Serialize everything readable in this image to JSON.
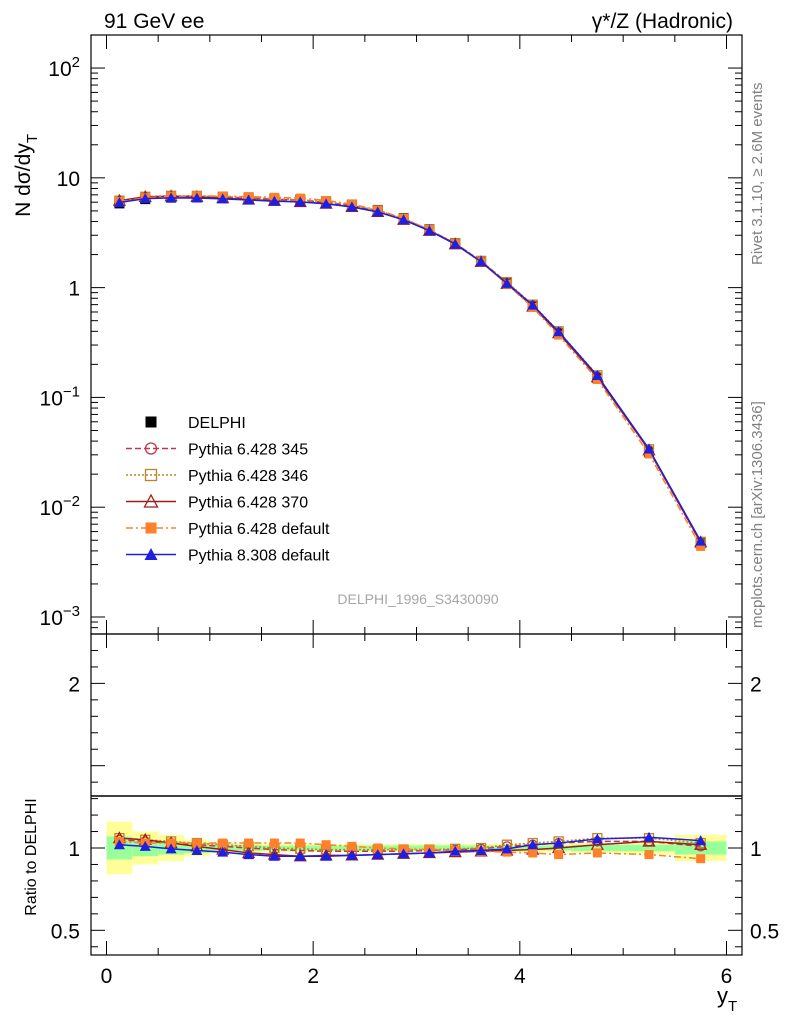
{
  "header": {
    "left": "91 GeV ee",
    "right": "γ*/Z (Hadronic)"
  },
  "side_text": {
    "top": "Rivet 3.1.10, ≥ 2.6M events",
    "bottom": "mcplots.cern.ch [arXiv:1306.3436]"
  },
  "chart_data": {
    "type": "line",
    "x": [
      0.125,
      0.375,
      0.625,
      0.875,
      1.125,
      1.375,
      1.625,
      1.875,
      2.125,
      2.375,
      2.625,
      2.875,
      3.125,
      3.375,
      3.625,
      3.875,
      4.125,
      4.375,
      4.75,
      5.25,
      5.75
    ],
    "x_bin_edges": [
      0,
      0.25,
      0.5,
      0.75,
      1,
      1.25,
      1.5,
      1.75,
      2,
      2.25,
      2.5,
      2.75,
      3,
      3.25,
      3.5,
      3.75,
      4,
      4.25,
      4.5,
      5,
      5.5,
      6
    ],
    "main": {
      "ylabel": "N dσ/dy",
      "ylabel_sub": "T",
      "y_scale": "log",
      "ylim": [
        0.0007,
        200
      ],
      "y_ticks": [
        {
          "v": 0.001,
          "base": "10",
          "exp": "−3"
        },
        {
          "v": 0.01,
          "base": "10",
          "exp": "−2"
        },
        {
          "v": 0.1,
          "base": "10",
          "exp": "−1"
        },
        {
          "v": 1,
          "base": "1",
          "exp": ""
        },
        {
          "v": 10,
          "base": "10",
          "exp": ""
        },
        {
          "v": 100,
          "base": "10",
          "exp": "2"
        }
      ]
    },
    "ratio": {
      "ylabel": "Ratio to DELPHI",
      "ylim": [
        0.35,
        2.3
      ],
      "y_ticks": [
        {
          "v": 0.5,
          "label": "0.5"
        },
        {
          "v": 1,
          "label": "1"
        },
        {
          "v": 2,
          "label": "2"
        }
      ],
      "band_inner_half": [
        0.07,
        0.05,
        0.04,
        0.03,
        0.02,
        0.02,
        0.015,
        0.015,
        0.015,
        0.015,
        0.015,
        0.015,
        0.015,
        0.015,
        0.015,
        0.015,
        0.015,
        0.015,
        0.02,
        0.02,
        0.04
      ],
      "band_outer_half": [
        0.16,
        0.1,
        0.08,
        0.05,
        0.03,
        0.03,
        0.025,
        0.025,
        0.025,
        0.025,
        0.025,
        0.025,
        0.025,
        0.025,
        0.025,
        0.025,
        0.025,
        0.025,
        0.03,
        0.04,
        0.08
      ],
      "band_inner_color": "#99ff99",
      "band_outer_color": "#ffff99"
    },
    "xlabel": "y",
    "xlabel_sub": "T",
    "xlim": [
      -0.15,
      6.15
    ],
    "x_ticks": [
      0,
      2,
      4,
      6
    ],
    "data_values": [
      5.85,
      6.4,
      6.6,
      6.65,
      6.6,
      6.55,
      6.45,
      6.35,
      6.1,
      5.7,
      5.1,
      4.3,
      3.4,
      2.55,
      1.75,
      1.1,
      0.68,
      0.385,
      0.15,
      0.0318,
      0.0047
    ],
    "series": [
      {
        "name": "DELPHI",
        "color": "#000000",
        "marker": "square-filled",
        "dash": "none",
        "ratio": [
          1,
          1,
          1,
          1,
          1,
          1,
          1,
          1,
          1,
          1,
          1,
          1,
          1,
          1,
          1,
          1,
          1,
          1,
          1,
          1,
          1
        ]
      },
      {
        "name": "Pythia 6.428 345",
        "color": "#c0394b",
        "marker": "circle-open",
        "dash": "6,3",
        "ratio": [
          1.05,
          1.04,
          1.03,
          1.02,
          1.01,
          1.0,
          0.99,
          0.985,
          0.98,
          0.98,
          0.98,
          0.98,
          0.985,
          0.99,
          0.995,
          1.01,
          1.02,
          1.03,
          1.04,
          1.04,
          1.01
        ]
      },
      {
        "name": "Pythia 6.428 346",
        "color": "#b8862b",
        "marker": "square-open",
        "dash": "2,2",
        "ratio": [
          1.06,
          1.05,
          1.04,
          1.03,
          1.02,
          1.01,
          1.0,
          0.995,
          0.99,
          0.99,
          0.99,
          0.99,
          0.99,
          0.995,
          1.0,
          1.02,
          1.03,
          1.04,
          1.06,
          1.06,
          1.03
        ]
      },
      {
        "name": "Pythia 6.428 370",
        "color": "#a01c1c",
        "marker": "triangle-open",
        "dash": "none",
        "ratio": [
          1.06,
          1.05,
          1.03,
          1.01,
          0.99,
          0.97,
          0.96,
          0.95,
          0.955,
          0.955,
          0.96,
          0.965,
          0.97,
          0.975,
          0.98,
          0.985,
          0.99,
          1.0,
          1.02,
          1.04,
          1.02
        ]
      },
      {
        "name": "Pythia 6.428 default",
        "color": "#ff7f2a",
        "marker": "square-filled",
        "dash": "7,3,2,3",
        "ratio": [
          1.04,
          1.03,
          1.03,
          1.03,
          1.03,
          1.03,
          1.03,
          1.03,
          1.02,
          1.01,
          1.0,
          0.995,
          0.99,
          0.985,
          0.98,
          0.975,
          0.97,
          0.96,
          0.97,
          0.96,
          0.935
        ]
      },
      {
        "name": "Pythia 8.308 default",
        "color": "#1f1fe0",
        "marker": "triangle-filled",
        "dash": "none",
        "ratio": [
          1.02,
          1.01,
          0.995,
          0.985,
          0.975,
          0.96,
          0.95,
          0.95,
          0.95,
          0.955,
          0.96,
          0.965,
          0.97,
          0.98,
          0.985,
          0.995,
          1.02,
          1.03,
          1.055,
          1.065,
          1.045
        ]
      }
    ],
    "watermark": "DELPHI_1996_S3430090",
    "legend_position": "lower-left of main panel"
  }
}
